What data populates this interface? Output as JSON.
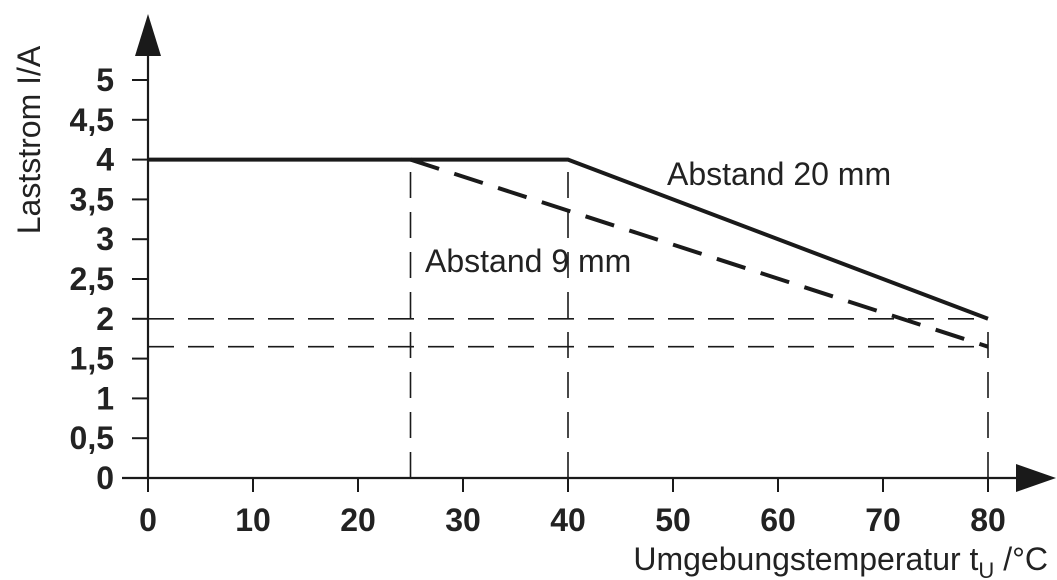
{
  "chart_data": {
    "type": "line",
    "title": "",
    "xlabel": "Umgebungstemperatur t",
    "xlabel_sub": "U",
    "xlabel_unit": " /°C",
    "ylabel": "Laststrom I/A",
    "xlim": [
      0,
      80
    ],
    "ylim": [
      0,
      5
    ],
    "xticks": [
      0,
      10,
      20,
      30,
      40,
      50,
      60,
      70,
      80
    ],
    "yticks": [
      0,
      0.5,
      1,
      1.5,
      2,
      2.5,
      3,
      3.5,
      4,
      4.5,
      5
    ],
    "xtick_labels": [
      "0",
      "10",
      "20",
      "30",
      "40",
      "50",
      "60",
      "70",
      "80"
    ],
    "ytick_labels": [
      "0",
      "0,5",
      "1",
      "1,5",
      "2",
      "2,5",
      "3",
      "3,5",
      "4",
      "4,5",
      "5"
    ],
    "grid": false,
    "series": [
      {
        "name": "Abstand 20 mm",
        "style": "solid",
        "x": [
          0,
          40,
          80
        ],
        "y": [
          4,
          4,
          2
        ]
      },
      {
        "name": "Abstand 9 mm",
        "style": "dashed",
        "x": [
          25,
          80
        ],
        "y": [
          4,
          1.65
        ]
      }
    ],
    "reference_lines": [
      {
        "orientation": "vertical",
        "x": 25,
        "from": 0,
        "to": 4
      },
      {
        "orientation": "vertical",
        "x": 40,
        "from": 0,
        "to": 4
      },
      {
        "orientation": "vertical",
        "x": 80,
        "from": 0,
        "to": 2
      },
      {
        "orientation": "horizontal",
        "y": 2,
        "from": 0,
        "to": 80
      },
      {
        "orientation": "horizontal",
        "y": 1.65,
        "from": 0,
        "to": 80
      }
    ],
    "colors": {
      "line": "#1a1a1a",
      "text": "#222222"
    }
  }
}
